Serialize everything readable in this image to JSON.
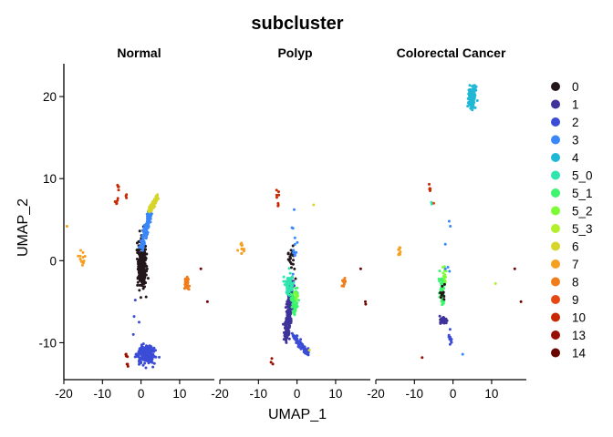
{
  "chart_data": {
    "type": "scatter",
    "title": "subcluster",
    "xlabel": "UMAP_1",
    "ylabel": "UMAP_2",
    "xlim": [
      -20,
      19
    ],
    "ylim": [
      -14.5,
      24
    ],
    "xticks": [
      -20,
      -10,
      0,
      10
    ],
    "yticks": [
      -10,
      0,
      10,
      20
    ],
    "xtick_labels": [
      "-20",
      "-10",
      "0",
      "10"
    ],
    "ytick_labels": [
      "-10",
      "0",
      "10",
      "20"
    ],
    "grid": false,
    "legend_position": "right",
    "facets": [
      {
        "label": "Normal",
        "clusters": [
          {
            "name": "0",
            "color": "#23171b",
            "shape": "blob",
            "cx": 0.2,
            "cy": -0.5,
            "rx": 1.2,
            "ry": 3.0,
            "n": 260
          },
          {
            "name": "3",
            "color": "#3987f9",
            "shape": "arc",
            "from": [
              0,
              1.5
            ],
            "to": [
              2.5,
              6
            ],
            "spread": 0.7,
            "n": 150
          },
          {
            "name": "6",
            "color": "#d7d52c",
            "shape": "arc",
            "from": [
              2.2,
              6
            ],
            "to": [
              4.2,
              7.8
            ],
            "spread": 0.5,
            "n": 120
          },
          {
            "name": "2",
            "color": "#3b4dd6",
            "shape": "blob",
            "cx": 1.4,
            "cy": -11.4,
            "rx": 2.2,
            "ry": 1.1,
            "n": 220
          },
          {
            "name": "2",
            "color": "#3b4dd6",
            "shape": "pts",
            "pts": [
              [
                -1.8,
                -6.8
              ],
              [
                -2.0,
                -9.0
              ],
              [
                -1.5,
                -4.8
              ],
              [
                -0.5,
                -7.5
              ]
            ]
          },
          {
            "name": "8",
            "color": "#f07d1a",
            "shape": "blob",
            "cx": 11.8,
            "cy": -2.7,
            "rx": 0.5,
            "ry": 0.8,
            "n": 45
          },
          {
            "name": "14",
            "color": "#6a0500",
            "shape": "pts",
            "pts": [
              [
                15.5,
                -1.0
              ],
              [
                17.2,
                -5.0
              ]
            ]
          },
          {
            "name": "7",
            "color": "#f6a01f",
            "shape": "blob",
            "cx": -15.2,
            "cy": 0.5,
            "rx": 1.1,
            "ry": 1.3,
            "n": 14
          },
          {
            "name": "7",
            "color": "#f6a01f",
            "shape": "pts",
            "pts": [
              [
                -19.2,
                4.2
              ]
            ]
          },
          {
            "name": "10",
            "color": "#c92902",
            "shape": "blob",
            "cx": -6.3,
            "cy": 7.3,
            "rx": 0.6,
            "ry": 0.5,
            "n": 6
          },
          {
            "name": "10",
            "color": "#c92902",
            "shape": "blob",
            "cx": -6.0,
            "cy": 9.0,
            "rx": 0.3,
            "ry": 0.4,
            "n": 4
          },
          {
            "name": "10",
            "color": "#c92902",
            "shape": "blob",
            "cx": -3.8,
            "cy": 7.8,
            "rx": 0.3,
            "ry": 0.4,
            "n": 3
          },
          {
            "name": "13",
            "color": "#9a0e01",
            "shape": "blob",
            "cx": -3.7,
            "cy": -11.6,
            "rx": 0.4,
            "ry": 0.3,
            "n": 4
          },
          {
            "name": "13",
            "color": "#9a0e01",
            "shape": "blob",
            "cx": -3.5,
            "cy": -12.7,
            "rx": 0.3,
            "ry": 0.3,
            "n": 3
          }
        ]
      },
      {
        "label": "Polyp",
        "clusters": [
          {
            "name": "1",
            "color": "#3e339a",
            "shape": "arc",
            "from": [
              -1.5,
              -2.5
            ],
            "to": [
              -2.7,
              -9.5
            ],
            "spread": 1.0,
            "n": 240
          },
          {
            "name": "2",
            "color": "#3b4dd6",
            "shape": "arc",
            "from": [
              -1.0,
              -9.0
            ],
            "to": [
              2.8,
              -11.3
            ],
            "spread": 0.6,
            "n": 90
          },
          {
            "name": "5_0",
            "color": "#2ee5ae",
            "shape": "blob",
            "cx": -2.2,
            "cy": -3.0,
            "rx": 1.2,
            "ry": 1.5,
            "n": 60
          },
          {
            "name": "5_1",
            "color": "#3df46d",
            "shape": "blob",
            "cx": -0.6,
            "cy": -5.0,
            "rx": 0.9,
            "ry": 1.4,
            "n": 70
          },
          {
            "name": "5_2",
            "color": "#7cfc37",
            "shape": "blob",
            "cx": -0.3,
            "cy": -4.2,
            "rx": 0.4,
            "ry": 0.6,
            "n": 10
          },
          {
            "name": "0",
            "color": "#23171b",
            "shape": "blob",
            "cx": -1.4,
            "cy": 0.3,
            "rx": 1.0,
            "ry": 1.7,
            "n": 25
          },
          {
            "name": "3",
            "color": "#3987f9",
            "shape": "blob",
            "cx": -0.7,
            "cy": 2.0,
            "rx": 0.8,
            "ry": 3.0,
            "n": 14
          },
          {
            "name": "7",
            "color": "#f6a01f",
            "shape": "blob",
            "cx": -14.2,
            "cy": 1.2,
            "rx": 0.8,
            "ry": 0.8,
            "n": 12
          },
          {
            "name": "8",
            "color": "#f07d1a",
            "shape": "blob",
            "cx": 12.2,
            "cy": -2.6,
            "rx": 0.6,
            "ry": 0.6,
            "n": 10
          },
          {
            "name": "14",
            "color": "#6a0500",
            "shape": "pts",
            "pts": [
              [
                16.5,
                -1.0
              ],
              [
                17.7,
                -5.0
              ],
              [
                17.8,
                -5.3
              ]
            ]
          },
          {
            "name": "10",
            "color": "#c92902",
            "shape": "blob",
            "cx": -5.0,
            "cy": 8.5,
            "rx": 0.3,
            "ry": 0.8,
            "n": 5
          },
          {
            "name": "10",
            "color": "#c92902",
            "shape": "blob",
            "cx": -4.9,
            "cy": 6.8,
            "rx": 0.3,
            "ry": 0.3,
            "n": 3
          },
          {
            "name": "13",
            "color": "#9a0e01",
            "shape": "blob",
            "cx": -6.5,
            "cy": -12.3,
            "rx": 0.3,
            "ry": 0.4,
            "n": 3
          },
          {
            "name": "6",
            "color": "#d7d52c",
            "shape": "pts",
            "pts": [
              [
                4.3,
                6.8
              ],
              [
                3.2,
                -10.9
              ]
            ]
          }
        ]
      },
      {
        "label": "Colorectal Cancer",
        "clusters": [
          {
            "name": "4",
            "color": "#1fb8d6",
            "shape": "blob",
            "cx": 5.0,
            "cy": 20.0,
            "rx": 0.9,
            "ry": 1.2,
            "n": 180
          },
          {
            "name": "5_1",
            "color": "#3df46d",
            "shape": "blob",
            "cx": -2.8,
            "cy": -3.5,
            "rx": 0.8,
            "ry": 1.8,
            "n": 45
          },
          {
            "name": "5_2",
            "color": "#7cfc37",
            "shape": "blob",
            "cx": -2.2,
            "cy": -2.0,
            "rx": 0.5,
            "ry": 1.2,
            "n": 15
          },
          {
            "name": "1",
            "color": "#3e339a",
            "shape": "blob",
            "cx": -2.6,
            "cy": -7.3,
            "rx": 1.0,
            "ry": 0.4,
            "n": 30
          },
          {
            "name": "0",
            "color": "#23171b",
            "shape": "blob",
            "cx": -2.7,
            "cy": -4.2,
            "rx": 0.6,
            "ry": 1.2,
            "n": 12
          },
          {
            "name": "2",
            "color": "#3b4dd6",
            "shape": "blob",
            "cx": -0.8,
            "cy": -9.7,
            "rx": 0.6,
            "ry": 1.0,
            "n": 12
          },
          {
            "name": "3",
            "color": "#3987f9",
            "shape": "pts",
            "pts": [
              [
                -1.0,
                4.8
              ],
              [
                -0.7,
                4.2
              ],
              [
                -2.0,
                2.0
              ],
              [
                -1.3,
                -0.8
              ],
              [
                -2.0,
                -1.0
              ],
              [
                -0.9,
                -1.3
              ],
              [
                2.5,
                -11.4
              ]
            ]
          },
          {
            "name": "7",
            "color": "#f6a01f",
            "shape": "blob",
            "cx": -14.0,
            "cy": 1.2,
            "rx": 0.5,
            "ry": 0.8,
            "n": 8
          },
          {
            "name": "10",
            "color": "#c92902",
            "shape": "blob",
            "cx": -6.0,
            "cy": 8.8,
            "rx": 0.3,
            "ry": 0.6,
            "n": 5
          },
          {
            "name": "5_0",
            "color": "#2ee5ae",
            "shape": "pts",
            "pts": [
              [
                -5.6,
                7.1
              ],
              [
                -5.5,
                6.9
              ]
            ]
          },
          {
            "name": "14",
            "color": "#6a0500",
            "shape": "pts",
            "pts": [
              [
                16.0,
                -1.0
              ],
              [
                17.6,
                -5.0
              ]
            ]
          },
          {
            "name": "5_3",
            "color": "#b2f02c",
            "shape": "pts",
            "pts": [
              [
                11.0,
                -2.8
              ]
            ]
          },
          {
            "name": "13",
            "color": "#9a0e01",
            "shape": "pts",
            "pts": [
              [
                -8.0,
                -11.8
              ]
            ]
          },
          {
            "name": "9",
            "color": "#e54813",
            "shape": "pts",
            "pts": [
              [
                -5.0,
                7.0
              ]
            ]
          }
        ]
      }
    ],
    "legend": [
      {
        "label": "0",
        "color": "#23171b"
      },
      {
        "label": "1",
        "color": "#3e339a"
      },
      {
        "label": "2",
        "color": "#3b4dd6"
      },
      {
        "label": "3",
        "color": "#3987f9"
      },
      {
        "label": "4",
        "color": "#1fb8d6"
      },
      {
        "label": "5_0",
        "color": "#2ee5ae"
      },
      {
        "label": "5_1",
        "color": "#3df46d"
      },
      {
        "label": "5_2",
        "color": "#7cfc37"
      },
      {
        "label": "5_3",
        "color": "#b2f02c"
      },
      {
        "label": "6",
        "color": "#d7d52c"
      },
      {
        "label": "7",
        "color": "#f6a01f"
      },
      {
        "label": "8",
        "color": "#f07d1a"
      },
      {
        "label": "9",
        "color": "#e54813"
      },
      {
        "label": "10",
        "color": "#c92902"
      },
      {
        "label": "13",
        "color": "#9a0e01"
      },
      {
        "label": "14",
        "color": "#6a0500"
      }
    ]
  }
}
